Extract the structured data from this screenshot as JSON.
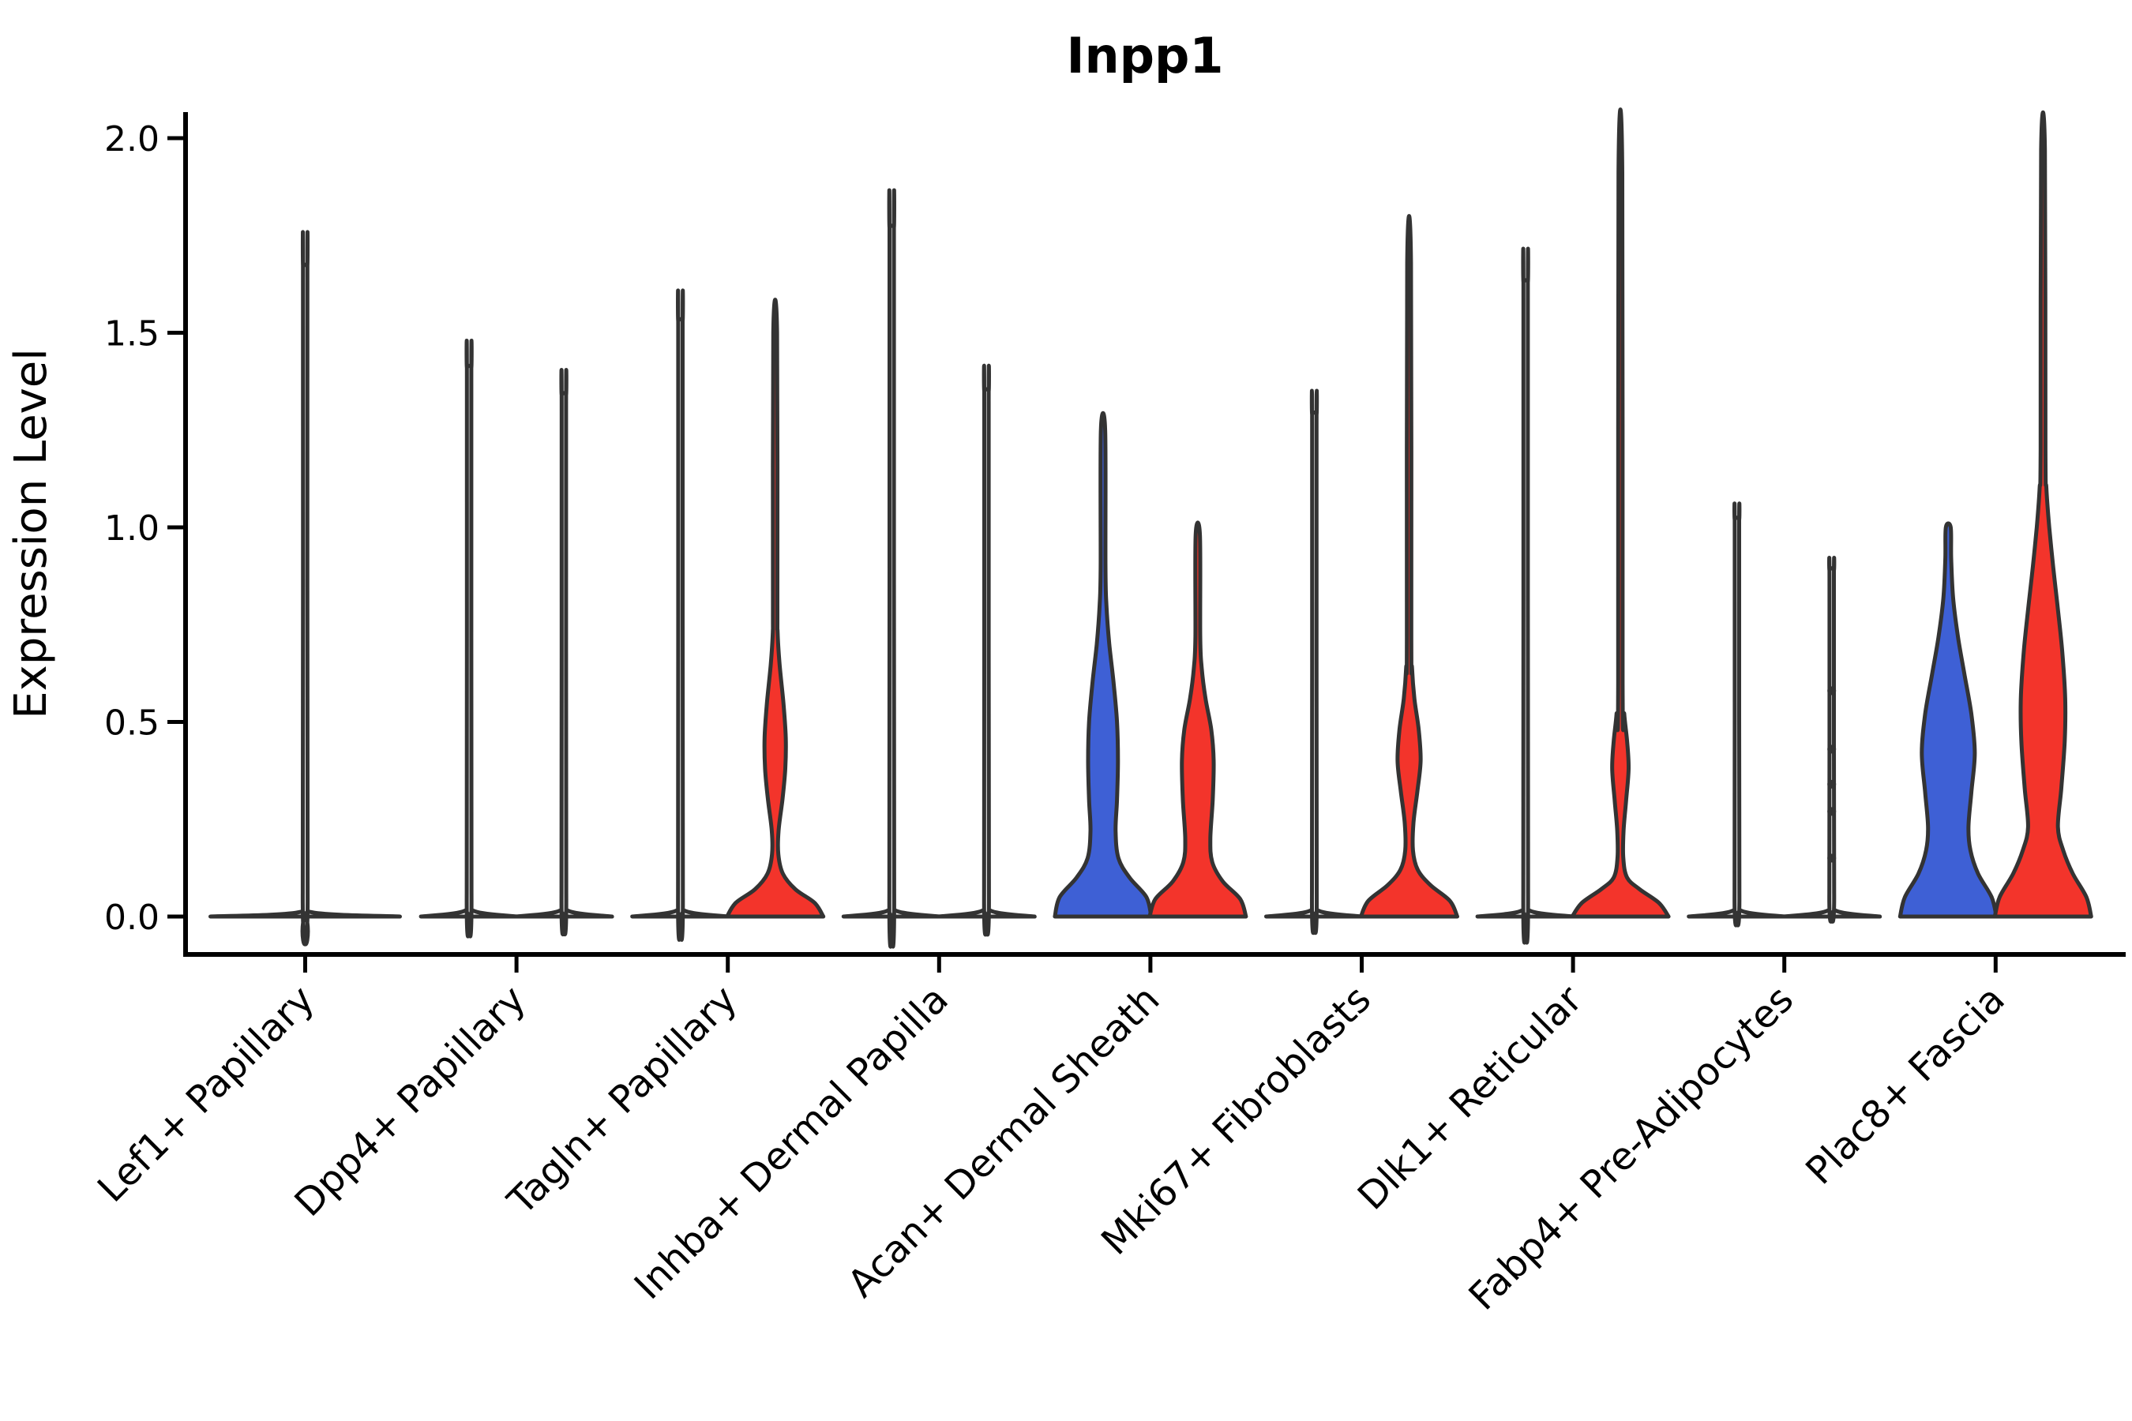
{
  "figure": {
    "title": "Inpp1",
    "y_axis_label": "Expression Level"
  },
  "chart_data": {
    "type": "violin",
    "title": "Inpp1",
    "xlabel": "",
    "ylabel": "Expression Level",
    "ylim": [
      0,
      2.05
    ],
    "y_ticks": [
      "0.0",
      "0.5",
      "1.0",
      "1.5",
      "2.0"
    ],
    "y_tick_values": [
      0,
      0.5,
      1.0,
      1.5,
      2.0
    ],
    "grid": "off",
    "legend": "none",
    "colors": {
      "split_blue": "#3E60D5",
      "split_red": "#F3342B",
      "outline": "#333333",
      "axis": "#000000"
    },
    "note": "Split violin plot; per cell-type group: left violin = blue condition, right violin = red condition. profile = [expression_value, width_fraction_of_violin] pairs; max_expression = top of density tail.",
    "groups": [
      {
        "label": "Lef1+ Papillary",
        "violins": [
          {
            "side": "center",
            "fill": "none",
            "max_expression": 1.67,
            "profile": [
              [
                0,
                1.0
              ],
              [
                0.012,
                0.05
              ],
              [
                0.06,
                0.026
              ],
              [
                1.63,
                0.023
              ],
              [
                1.67,
                0.022
              ]
            ]
          }
        ]
      },
      {
        "label": "Dpp4+ Papillary",
        "violins": [
          {
            "side": "left",
            "fill": "none",
            "max_expression": 1.41,
            "profile": [
              [
                0,
                1.0
              ],
              [
                0.015,
                0.09
              ],
              [
                0.06,
                0.05
              ],
              [
                1.37,
                0.046
              ],
              [
                1.41,
                0.045
              ]
            ]
          },
          {
            "side": "right",
            "fill": "none",
            "max_expression": 1.34,
            "profile": [
              [
                0,
                1.0
              ],
              [
                0.015,
                0.09
              ],
              [
                0.06,
                0.05
              ],
              [
                1.3,
                0.046
              ],
              [
                1.34,
                0.045
              ]
            ]
          }
        ]
      },
      {
        "label": "Tagln+ Papillary",
        "violins": [
          {
            "side": "left",
            "fill": "none",
            "max_expression": 1.53,
            "profile": [
              [
                0,
                1.0
              ],
              [
                0.015,
                0.09
              ],
              [
                0.06,
                0.05
              ],
              [
                1.49,
                0.046
              ],
              [
                1.53,
                0.045
              ]
            ]
          },
          {
            "side": "right",
            "fill": "#F3342B",
            "max_expression": 1.5,
            "profile": [
              [
                0,
                1.0
              ],
              [
                0.035,
                0.82
              ],
              [
                0.07,
                0.42
              ],
              [
                0.11,
                0.16
              ],
              [
                0.16,
                0.065
              ],
              [
                0.22,
                0.07
              ],
              [
                0.3,
                0.15
              ],
              [
                0.38,
                0.21
              ],
              [
                0.46,
                0.22
              ],
              [
                0.55,
                0.17
              ],
              [
                0.65,
                0.09
              ],
              [
                0.73,
                0.05
              ],
              [
                0.82,
                0.046
              ],
              [
                1.5,
                0.04
              ]
            ]
          }
        ]
      },
      {
        "label": "Inhba+ Dermal Papilla",
        "violins": [
          {
            "side": "left",
            "fill": "none",
            "max_expression": 1.77,
            "profile": [
              [
                0,
                1.0
              ],
              [
                0.015,
                0.09
              ],
              [
                0.06,
                0.05
              ],
              [
                1.73,
                0.046
              ],
              [
                1.77,
                0.045
              ]
            ]
          },
          {
            "side": "right",
            "fill": "none",
            "max_expression": 1.35,
            "profile": [
              [
                0,
                1.0
              ],
              [
                0.015,
                0.09
              ],
              [
                0.06,
                0.05
              ],
              [
                1.31,
                0.046
              ],
              [
                1.35,
                0.045
              ]
            ]
          }
        ]
      },
      {
        "label": "Acan+ Dermal Sheath",
        "violins": [
          {
            "side": "left",
            "fill": "#3E60D5",
            "max_expression": 1.25,
            "profile": [
              [
                0,
                1.0
              ],
              [
                0.05,
                0.9
              ],
              [
                0.1,
                0.55
              ],
              [
                0.15,
                0.32
              ],
              [
                0.22,
                0.26
              ],
              [
                0.3,
                0.29
              ],
              [
                0.4,
                0.31
              ],
              [
                0.5,
                0.29
              ],
              [
                0.6,
                0.22
              ],
              [
                0.7,
                0.13
              ],
              [
                0.8,
                0.07
              ],
              [
                0.9,
                0.05
              ],
              [
                1.25,
                0.045
              ]
            ]
          },
          {
            "side": "right",
            "fill": "#F3342B",
            "max_expression": 0.98,
            "profile": [
              [
                0,
                1.0
              ],
              [
                0.045,
                0.88
              ],
              [
                0.09,
                0.52
              ],
              [
                0.14,
                0.3
              ],
              [
                0.2,
                0.26
              ],
              [
                0.3,
                0.31
              ],
              [
                0.4,
                0.33
              ],
              [
                0.48,
                0.28
              ],
              [
                0.56,
                0.16
              ],
              [
                0.64,
                0.08
              ],
              [
                0.72,
                0.05
              ],
              [
                0.98,
                0.045
              ]
            ]
          }
        ]
      },
      {
        "label": "Mki67+ Fibroblasts",
        "violins": [
          {
            "side": "left",
            "fill": "none",
            "max_expression": 1.29,
            "profile": [
              [
                0,
                1.0
              ],
              [
                0.015,
                0.09
              ],
              [
                0.06,
                0.05
              ],
              [
                1.25,
                0.046
              ],
              [
                1.29,
                0.045
              ]
            ]
          },
          {
            "side": "right",
            "fill": "#F3342B",
            "max_expression": 1.68,
            "profile": [
              [
                0,
                1.0
              ],
              [
                0.04,
                0.85
              ],
              [
                0.08,
                0.45
              ],
              [
                0.12,
                0.18
              ],
              [
                0.17,
                0.08
              ],
              [
                0.24,
                0.09
              ],
              [
                0.32,
                0.17
              ],
              [
                0.4,
                0.24
              ],
              [
                0.48,
                0.2
              ],
              [
                0.56,
                0.11
              ],
              [
                0.64,
                0.06
              ],
              [
                0.72,
                0.046
              ],
              [
                1.68,
                0.04
              ]
            ]
          }
        ]
      },
      {
        "label": "Dlk1+ Reticular",
        "violins": [
          {
            "side": "left",
            "fill": "none",
            "max_expression": 1.63,
            "profile": [
              [
                0,
                1.0
              ],
              [
                0.015,
                0.09
              ],
              [
                0.06,
                0.05
              ],
              [
                1.59,
                0.046
              ],
              [
                1.63,
                0.045
              ]
            ]
          },
          {
            "side": "right",
            "fill": "#F3342B",
            "max_expression": 1.91,
            "profile": [
              [
                0,
                1.0
              ],
              [
                0.035,
                0.8
              ],
              [
                0.07,
                0.4
              ],
              [
                0.1,
                0.14
              ],
              [
                0.15,
                0.06
              ],
              [
                0.22,
                0.065
              ],
              [
                0.3,
                0.12
              ],
              [
                0.38,
                0.17
              ],
              [
                0.45,
                0.14
              ],
              [
                0.52,
                0.08
              ],
              [
                0.6,
                0.046
              ],
              [
                1.91,
                0.04
              ]
            ]
          }
        ]
      },
      {
        "label": "Fabp4+ Pre-Adipocytes",
        "violins": [
          {
            "side": "left",
            "fill": "none",
            "max_expression": 1.02,
            "profile": [
              [
                0,
                1.0
              ],
              [
                0.015,
                0.09
              ],
              [
                0.06,
                0.05
              ],
              [
                0.98,
                0.046
              ],
              [
                1.02,
                0.045
              ]
            ]
          },
          {
            "side": "right",
            "fill": "none",
            "max_expression": 0.89,
            "profile": [
              [
                0,
                1.0
              ],
              [
                0.015,
                0.09
              ],
              [
                0.06,
                0.05
              ],
              [
                0.85,
                0.046
              ],
              [
                0.89,
                0.045
              ]
            ],
            "jitter_points": [
              0.58,
              0.43,
              0.34,
              0.27,
              0.15
            ]
          }
        ]
      },
      {
        "label": "Plac8+ Fascia",
        "violins": [
          {
            "side": "left",
            "fill": "#3E60D5",
            "max_expression": 1.0,
            "profile": [
              [
                0,
                1.0
              ],
              [
                0.05,
                0.9
              ],
              [
                0.11,
                0.62
              ],
              [
                0.17,
                0.46
              ],
              [
                0.23,
                0.42
              ],
              [
                0.32,
                0.48
              ],
              [
                0.42,
                0.55
              ],
              [
                0.52,
                0.48
              ],
              [
                0.62,
                0.34
              ],
              [
                0.72,
                0.2
              ],
              [
                0.82,
                0.1
              ],
              [
                0.92,
                0.06
              ],
              [
                1.0,
                0.05
              ]
            ]
          },
          {
            "side": "right",
            "fill": "#F3342B",
            "max_expression": 1.97,
            "profile": [
              [
                0,
                1.0
              ],
              [
                0.05,
                0.9
              ],
              [
                0.11,
                0.62
              ],
              [
                0.17,
                0.42
              ],
              [
                0.23,
                0.31
              ],
              [
                0.33,
                0.38
              ],
              [
                0.45,
                0.45
              ],
              [
                0.56,
                0.46
              ],
              [
                0.68,
                0.4
              ],
              [
                0.8,
                0.3
              ],
              [
                0.9,
                0.21
              ],
              [
                1.0,
                0.13
              ],
              [
                1.1,
                0.07
              ],
              [
                1.2,
                0.05
              ],
              [
                1.97,
                0.04
              ]
            ]
          }
        ]
      }
    ]
  }
}
